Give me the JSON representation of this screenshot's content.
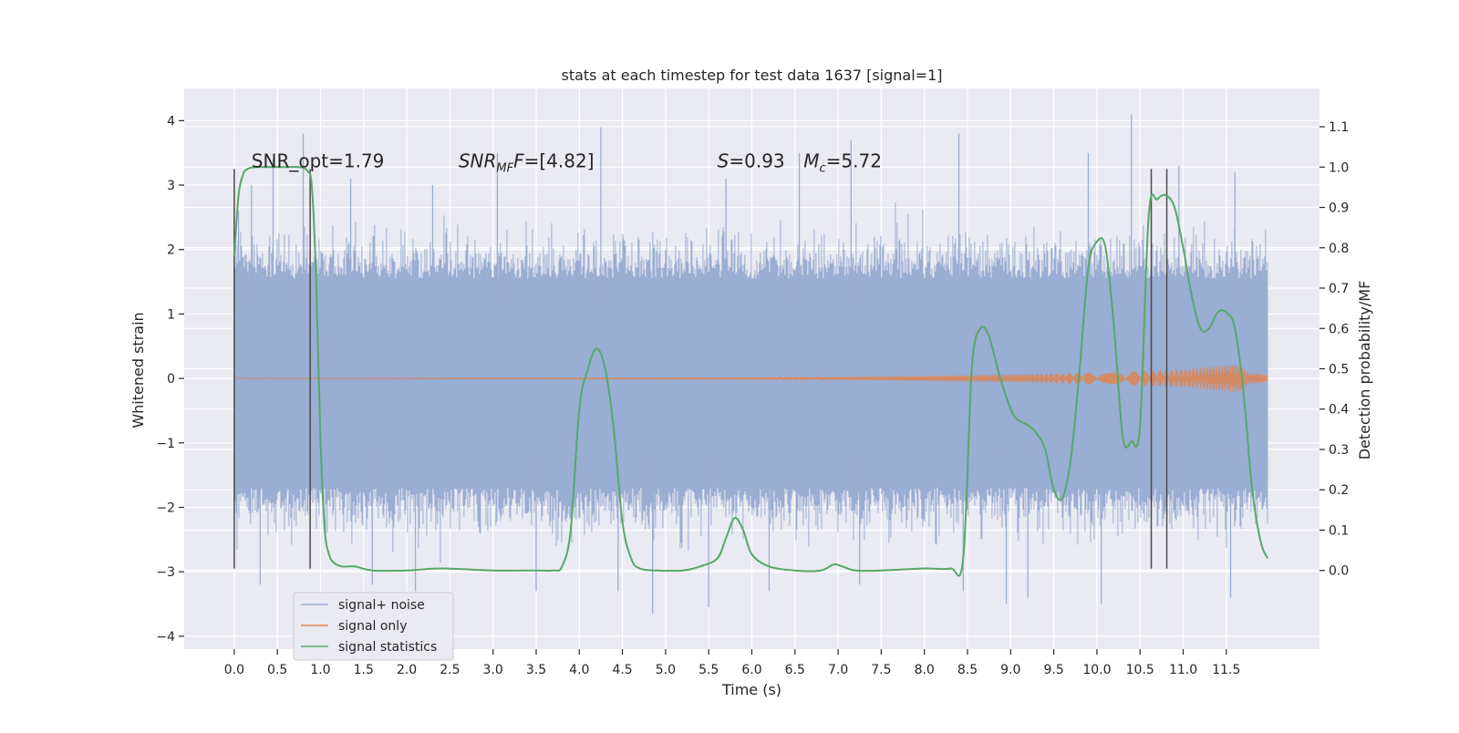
{
  "chart_data": {
    "type": "line",
    "title": "stats at each timestep for test data 1637 [signal=1]",
    "xlabel": "Time (s)",
    "ylabel": "Whitened strain",
    "y2label": "Detection probability/MF",
    "xlim": [
      -0.58,
      12.58
    ],
    "ylim": [
      -4.2,
      4.5
    ],
    "y2lim": [
      -0.195,
      1.195
    ],
    "xticks": [
      0.0,
      0.5,
      1.0,
      1.5,
      2.0,
      2.5,
      3.0,
      3.5,
      4.0,
      4.5,
      5.0,
      5.5,
      6.0,
      6.5,
      7.0,
      7.5,
      8.0,
      8.5,
      9.0,
      9.5,
      10.0,
      10.5,
      11.0,
      11.5
    ],
    "xtick_labels": [
      "0.0",
      "0.5",
      "1.0",
      "1.5",
      "2.0",
      "2.5",
      "3.0",
      "3.5",
      "4.0",
      "4.5",
      "5.0",
      "5.5",
      "6.0",
      "6.5",
      "7.0",
      "7.5",
      "8.0",
      "8.5",
      "9.0",
      "9.5",
      "10.0",
      "10.5",
      "11.0",
      "11.5"
    ],
    "yticks": [
      -4,
      -3,
      -2,
      -1,
      0,
      1,
      2,
      3,
      4
    ],
    "ytick_labels": [
      "−4",
      "−3",
      "−2",
      "−1",
      "0",
      "1",
      "2",
      "3",
      "4"
    ],
    "y2ticks": [
      0.0,
      0.1,
      0.2,
      0.3,
      0.4,
      0.5,
      0.6,
      0.7,
      0.8,
      0.9,
      1.0,
      1.1
    ],
    "y2tick_labels": [
      "0.0",
      "0.1",
      "0.2",
      "0.3",
      "0.4",
      "0.5",
      "0.6",
      "0.7",
      "0.8",
      "0.9",
      "1.0",
      "1.1"
    ],
    "grid": true,
    "legend_position": "lower-left",
    "annotations": [
      {
        "id": "snr-opt",
        "parts": [
          {
            "text": "SNR_opt=1.79",
            "italic": false
          }
        ],
        "x": 0.2,
        "y2": 1.0
      },
      {
        "id": "snr-mf",
        "parts": [
          {
            "text": "SNR",
            "italic": true
          },
          {
            "text": "MF",
            "italic": true,
            "sub": true
          },
          {
            "text": "F",
            "italic": true
          },
          {
            "text": "=[4.82]",
            "italic": false
          }
        ],
        "x": 2.6,
        "y2": 1.0
      },
      {
        "id": "s-value",
        "parts": [
          {
            "text": "S",
            "italic": true
          },
          {
            "text": "=0.93",
            "italic": false
          }
        ],
        "x": 5.6,
        "y2": 1.0
      },
      {
        "id": "mc-value",
        "parts": [
          {
            "text": "M",
            "italic": true
          },
          {
            "text": "c",
            "italic": true,
            "sub": true
          },
          {
            "text": "=5.72",
            "italic": false
          }
        ],
        "x": 6.6,
        "y2": 1.0
      }
    ],
    "vertical_markers": [
      0.0,
      0.88,
      10.63,
      10.81
    ],
    "marker_range": [
      -2.95,
      3.25
    ],
    "series": [
      {
        "name": "signal+ noise",
        "axis": "left",
        "color": "#9aadd2",
        "style": "noise-band",
        "x_range": [
          0.0,
          11.98
        ],
        "core_band": [
          -1.6,
          1.4
        ],
        "peak_maxima": [
          {
            "x": 0.05,
            "y": 2.6
          },
          {
            "x": 0.2,
            "y": 3.0
          },
          {
            "x": 0.45,
            "y": 3.4
          },
          {
            "x": 0.8,
            "y": 3.8
          },
          {
            "x": 1.35,
            "y": 3.1
          },
          {
            "x": 2.3,
            "y": 3.0
          },
          {
            "x": 3.05,
            "y": 3.5
          },
          {
            "x": 4.25,
            "y": 3.9
          },
          {
            "x": 5.7,
            "y": 3.1
          },
          {
            "x": 6.55,
            "y": 3.5
          },
          {
            "x": 7.15,
            "y": 3.7
          },
          {
            "x": 8.4,
            "y": 3.8
          },
          {
            "x": 9.9,
            "y": 3.5
          },
          {
            "x": 10.4,
            "y": 4.1
          },
          {
            "x": 10.95,
            "y": 3.3
          },
          {
            "x": 11.6,
            "y": 3.2
          }
        ],
        "peak_minima": [
          {
            "x": 0.3,
            "y": -3.2
          },
          {
            "x": 1.6,
            "y": -3.2
          },
          {
            "x": 2.1,
            "y": -3.3
          },
          {
            "x": 3.5,
            "y": -3.3
          },
          {
            "x": 4.45,
            "y": -3.3
          },
          {
            "x": 4.85,
            "y": -3.65
          },
          {
            "x": 5.5,
            "y": -3.55
          },
          {
            "x": 6.2,
            "y": -3.3
          },
          {
            "x": 7.25,
            "y": -3.2
          },
          {
            "x": 8.45,
            "y": -3.3
          },
          {
            "x": 8.95,
            "y": -3.5
          },
          {
            "x": 9.2,
            "y": -3.4
          },
          {
            "x": 10.05,
            "y": -3.5
          },
          {
            "x": 11.55,
            "y": -3.4
          }
        ]
      },
      {
        "name": "signal only",
        "axis": "left",
        "color": "#dd8452",
        "style": "chirp",
        "x_range": [
          0.0,
          11.98
        ],
        "amplitude": {
          "x": [
            0.0,
            6.0,
            7.0,
            8.0,
            9.0,
            10.0,
            10.5,
            11.0,
            11.4,
            11.65,
            11.75,
            11.98
          ],
          "y": [
            0.005,
            0.01,
            0.02,
            0.04,
            0.06,
            0.09,
            0.11,
            0.14,
            0.19,
            0.22,
            0.1,
            0.05
          ]
        }
      },
      {
        "name": "signal statistics",
        "axis": "right",
        "color": "#55a868",
        "style": "line",
        "x": [
          0.0,
          0.05,
          0.1,
          0.15,
          0.25,
          0.4,
          0.6,
          0.75,
          0.85,
          0.9,
          0.95,
          1.0,
          1.05,
          1.1,
          1.15,
          1.25,
          1.4,
          1.6,
          2.0,
          2.4,
          3.0,
          3.5,
          3.7,
          3.8,
          3.9,
          4.0,
          4.1,
          4.2,
          4.3,
          4.4,
          4.5,
          4.6,
          4.7,
          4.9,
          5.2,
          5.4,
          5.6,
          5.7,
          5.8,
          5.9,
          6.0,
          6.2,
          6.5,
          6.8,
          6.95,
          7.05,
          7.2,
          7.5,
          8.0,
          8.3,
          8.45,
          8.55,
          8.65,
          8.75,
          8.85,
          8.95,
          9.05,
          9.2,
          9.3,
          9.4,
          9.5,
          9.6,
          9.7,
          9.8,
          9.9,
          10.0,
          10.1,
          10.2,
          10.3,
          10.4,
          10.5,
          10.6,
          10.7,
          10.8,
          10.9,
          11.0,
          11.1,
          11.2,
          11.3,
          11.4,
          11.5,
          11.6,
          11.7,
          11.8,
          11.9,
          11.98
        ],
        "y": [
          0.78,
          0.93,
          0.98,
          0.995,
          1.0,
          1.0,
          1.0,
          1.0,
          0.99,
          0.95,
          0.72,
          0.32,
          0.1,
          0.04,
          0.02,
          0.01,
          0.01,
          0.0,
          0.0,
          0.005,
          0.0,
          0.0,
          0.0,
          0.01,
          0.1,
          0.4,
          0.5,
          0.55,
          0.5,
          0.35,
          0.12,
          0.03,
          0.005,
          0.0,
          0.0,
          0.01,
          0.03,
          0.08,
          0.13,
          0.1,
          0.04,
          0.01,
          0.0,
          0.0,
          0.015,
          0.01,
          0.0,
          0.0,
          0.005,
          0.005,
          0.03,
          0.5,
          0.6,
          0.58,
          0.5,
          0.43,
          0.38,
          0.36,
          0.34,
          0.3,
          0.2,
          0.18,
          0.28,
          0.5,
          0.75,
          0.815,
          0.8,
          0.6,
          0.33,
          0.32,
          0.36,
          0.88,
          0.92,
          0.93,
          0.9,
          0.8,
          0.68,
          0.6,
          0.6,
          0.64,
          0.64,
          0.6,
          0.44,
          0.2,
          0.07,
          0.03
        ]
      }
    ]
  }
}
